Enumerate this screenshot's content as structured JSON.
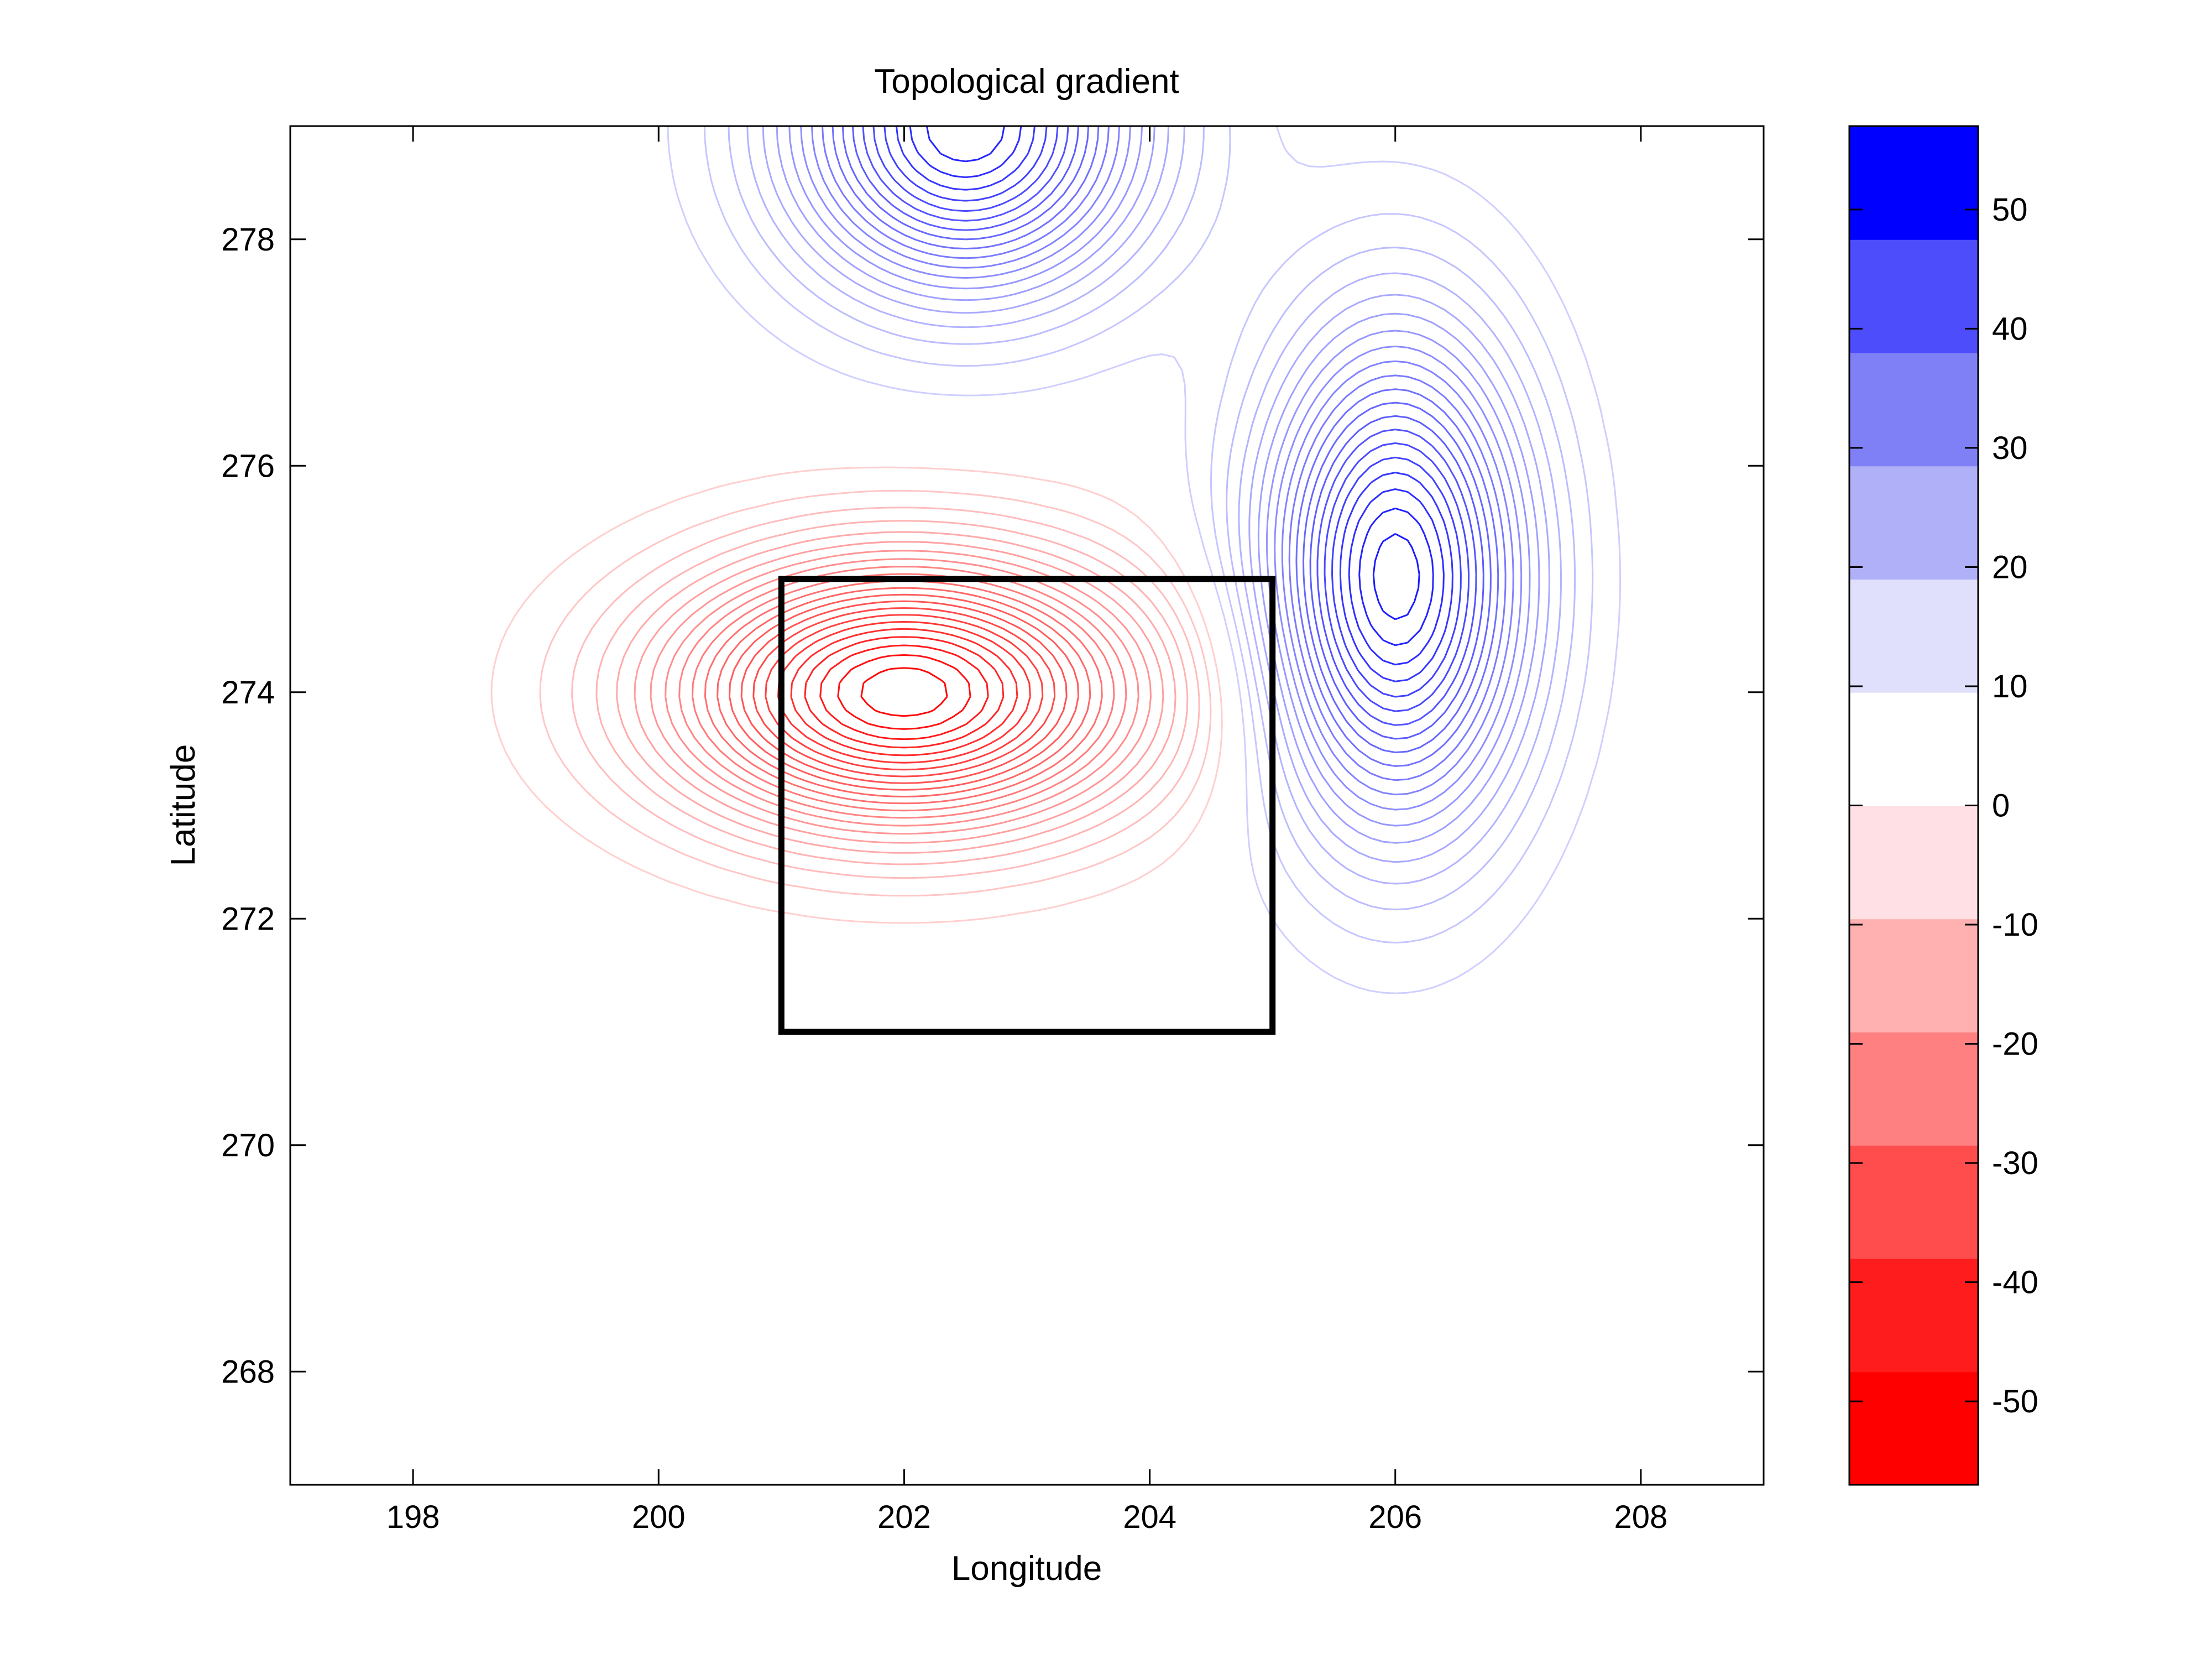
{
  "chart_data": {
    "type": "contour",
    "title": "Topological gradient",
    "xlabel": "Longitude",
    "ylabel": "Latitude",
    "xlim": [
      197,
      209
    ],
    "ylim": [
      267,
      279
    ],
    "xticks": [
      198,
      200,
      202,
      204,
      206,
      208
    ],
    "yticks": [
      268,
      270,
      272,
      274,
      276,
      278
    ],
    "grid": false,
    "features": [
      {
        "kind": "minimum",
        "x": 202,
        "y": 274,
        "value": -57
      },
      {
        "kind": "maximum",
        "x": 206,
        "y": 275,
        "value": 52
      },
      {
        "kind": "maximum",
        "x": 202.5,
        "y": 279,
        "value": 50
      }
    ],
    "highlight_box": {
      "x": [
        201,
        205
      ],
      "y": [
        271,
        275
      ],
      "color": "#000000"
    },
    "colorbar": {
      "range": [
        -57,
        57
      ],
      "ticks": [
        -50,
        -40,
        -30,
        -20,
        -10,
        0,
        10,
        20,
        30,
        40,
        50
      ],
      "bands": [
        {
          "from": -57,
          "to": -47.5,
          "color": "#ff0000"
        },
        {
          "from": -47.5,
          "to": -38,
          "color": "#ff1c1c"
        },
        {
          "from": -38,
          "to": -28.5,
          "color": "#ff4d4d"
        },
        {
          "from": -28.5,
          "to": -19,
          "color": "#ff8080"
        },
        {
          "from": -19,
          "to": -9.5,
          "color": "#ffb0b0"
        },
        {
          "from": -9.5,
          "to": 0,
          "color": "#ffe0e4"
        },
        {
          "from": 0,
          "to": 9.5,
          "color": "#ffffff"
        },
        {
          "from": 9.5,
          "to": 19,
          "color": "#e0e0fc"
        },
        {
          "from": 19,
          "to": 28.5,
          "color": "#b0b0f8"
        },
        {
          "from": 28.5,
          "to": 38,
          "color": "#8080f6"
        },
        {
          "from": 38,
          "to": 47.5,
          "color": "#4d4dfc"
        },
        {
          "from": 47.5,
          "to": 57,
          "color": "#0000ff"
        }
      ]
    }
  }
}
